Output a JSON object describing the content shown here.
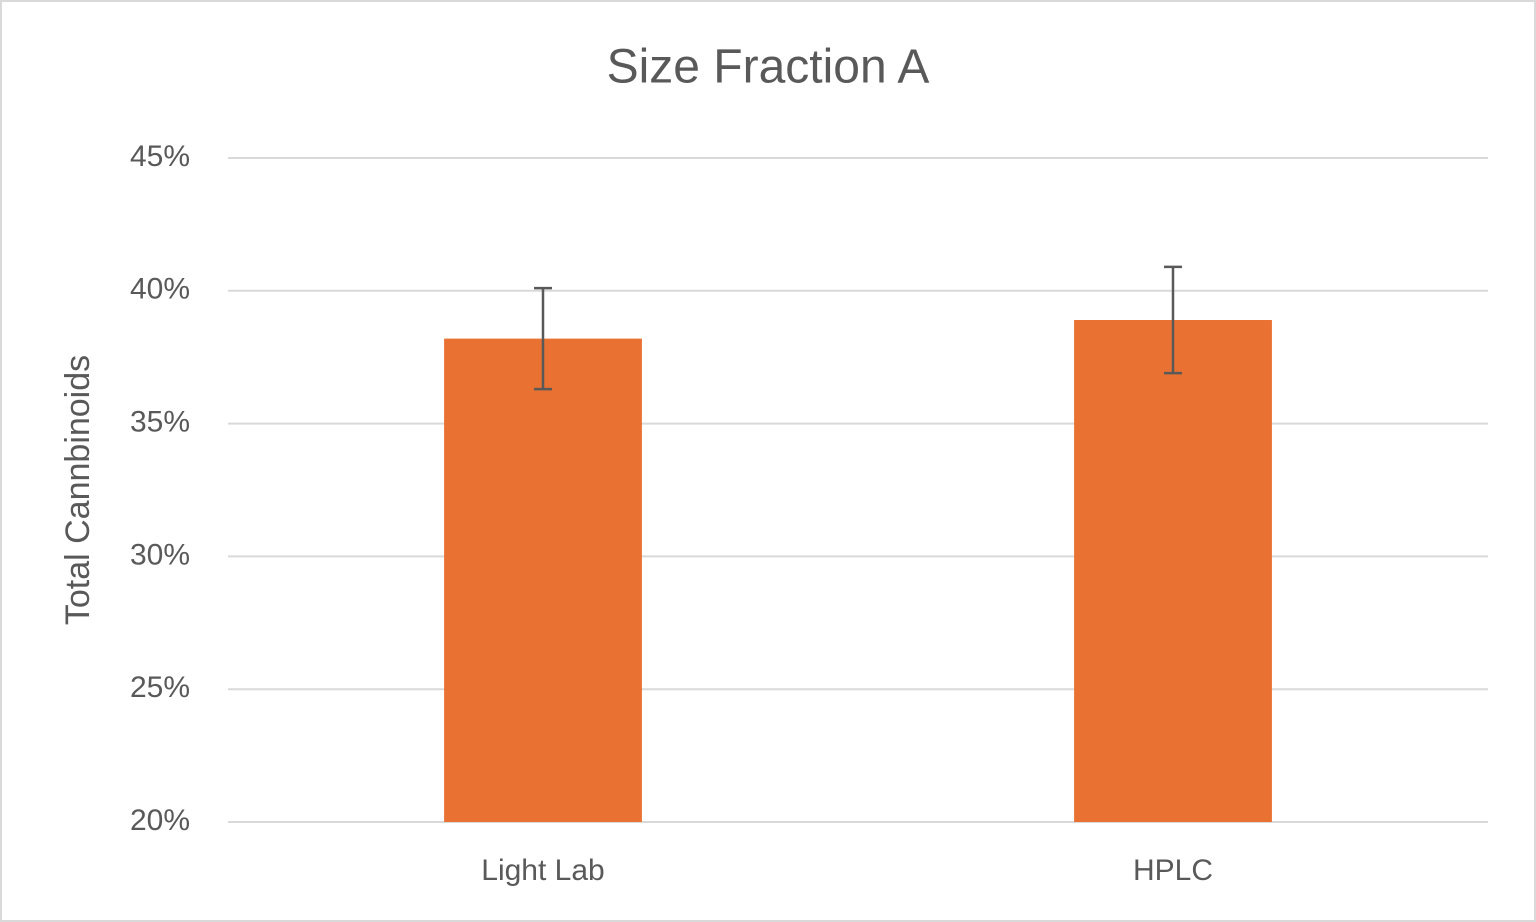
{
  "chart_data": {
    "type": "bar",
    "title": "Size Fraction A",
    "y_label": "Total Cannbinoids",
    "categories": [
      "Light Lab",
      "HPLC"
    ],
    "values": [
      38.2,
      38.9
    ],
    "errors": [
      1.9,
      2.0
    ],
    "color": "#e97132",
    "error_color": "#595959",
    "ylim": [
      20,
      45
    ],
    "yticks": [
      {
        "value": 20,
        "label": "20%"
      },
      {
        "value": 25,
        "label": "25%"
      },
      {
        "value": 30,
        "label": "30%"
      },
      {
        "value": 35,
        "label": "35%"
      },
      {
        "value": 40,
        "label": "40%"
      },
      {
        "value": 45,
        "label": "45%"
      }
    ],
    "grid": true
  }
}
